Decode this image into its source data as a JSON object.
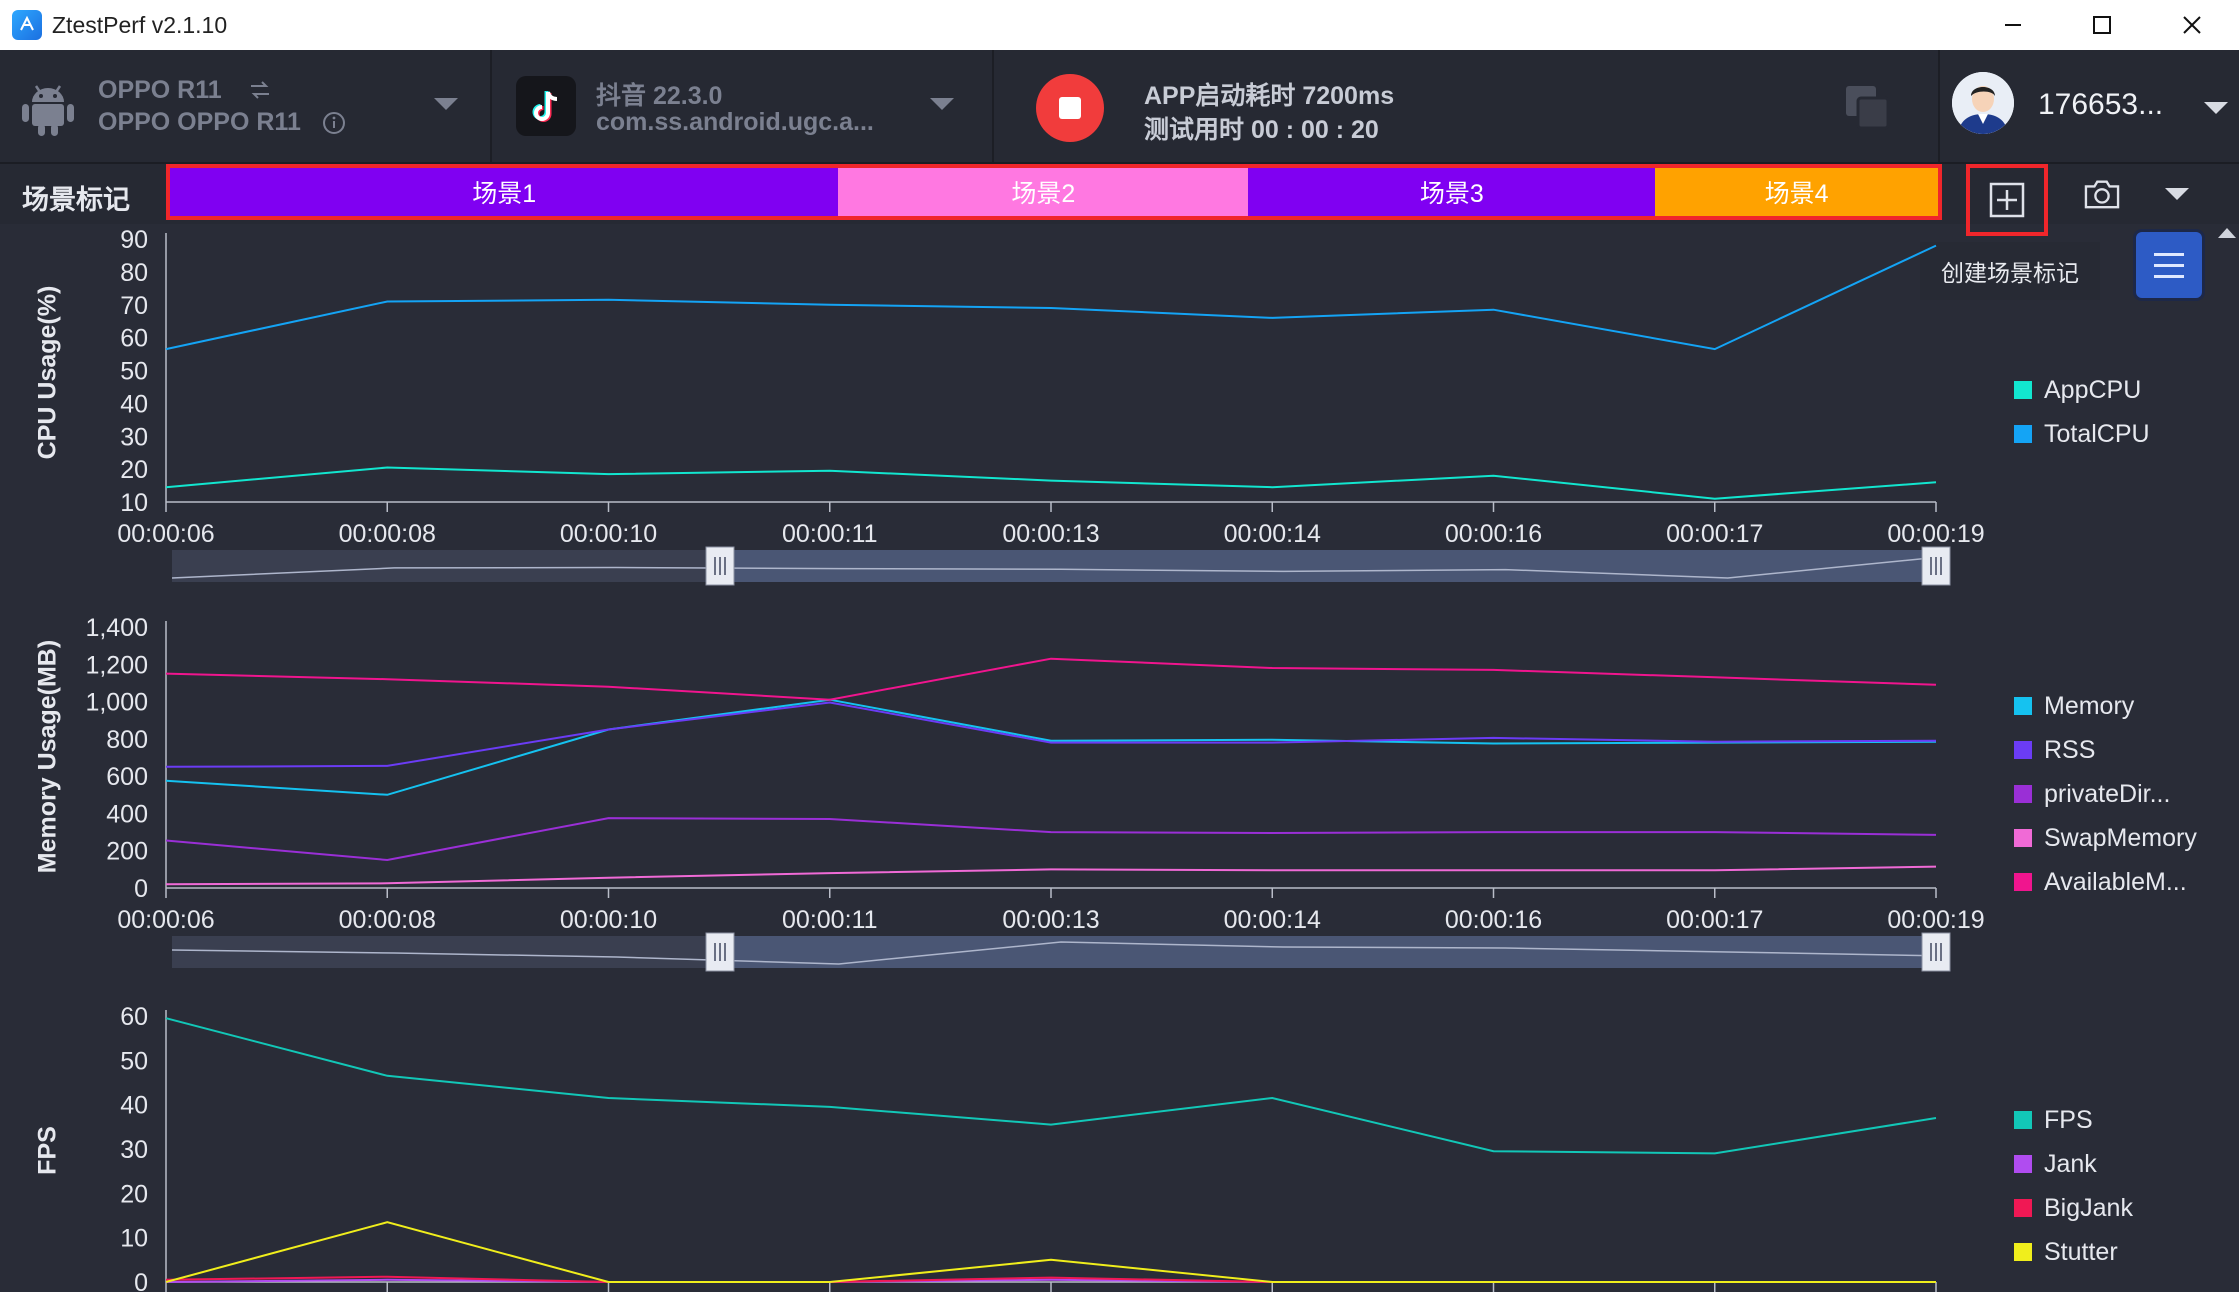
{
  "window": {
    "title": "ZtestPerf v2.1.10"
  },
  "device": {
    "line1": "OPPO R11",
    "line2": "OPPO OPPO R11"
  },
  "app": {
    "line1": "抖音 22.3.0",
    "line2": "com.ss.android.ugc.a..."
  },
  "status": {
    "launch_time": "APP启动耗时 7200ms",
    "test_time": "测试用时 00 : 00 : 20"
  },
  "user": {
    "name": "176653..."
  },
  "scenes": {
    "label": "场景标记",
    "items": [
      {
        "name": "场景1",
        "color": "#8000f2",
        "start": 0,
        "end": 3.78
      },
      {
        "name": "场景2",
        "color": "#ff78e1",
        "start": 3.78,
        "end": 6.1
      },
      {
        "name": "场景3",
        "color": "#8000f2",
        "start": 6.1,
        "end": 8.4
      },
      {
        "name": "场景4",
        "color": "#ffa200",
        "start": 8.4,
        "end": 10
      }
    ],
    "tooltip": "创建场景标记"
  },
  "time_labels": [
    "00:00:06",
    "00:00:08",
    "00:00:10",
    "00:00:11",
    "00:00:13",
    "00:00:14",
    "00:00:16",
    "00:00:17",
    "00:00:19"
  ],
  "chart_data": [
    {
      "type": "line",
      "id": "cpu",
      "ylabel": "CPU Usage(%)",
      "yticks": [
        10,
        20,
        30,
        40,
        50,
        60,
        70,
        80,
        90
      ],
      "ylim": [
        10,
        90
      ],
      "x": [
        "00:00:06",
        "00:00:08",
        "00:00:10",
        "00:00:11",
        "00:00:13",
        "00:00:14",
        "00:00:16",
        "00:00:17",
        "00:00:19"
      ],
      "series": [
        {
          "name": "AppCPU",
          "color": "#12e6cf",
          "values": [
            14.5,
            20.5,
            18.5,
            19.5,
            16.5,
            14.5,
            18,
            11,
            16
          ]
        },
        {
          "name": "TotalCPU",
          "color": "#14a4f5",
          "values": [
            56.5,
            71,
            71.5,
            70,
            69,
            66,
            68.5,
            56.5,
            88
          ]
        }
      ],
      "legend": "right"
    },
    {
      "type": "line",
      "id": "memory",
      "ylabel": "Memory Usage(MB)",
      "yticks": [
        0,
        200,
        400,
        600,
        800,
        1000,
        1200,
        1400
      ],
      "yticklabels": [
        "0",
        "200",
        "400",
        "600",
        "800",
        "1,000",
        "1,200",
        "1,400"
      ],
      "ylim": [
        0,
        1400
      ],
      "x": [
        "00:00:06",
        "00:00:08",
        "00:00:10",
        "00:00:11",
        "00:00:13",
        "00:00:14",
        "00:00:16",
        "00:00:17",
        "00:00:19"
      ],
      "series": [
        {
          "name": "Memory",
          "color": "#15c2f0",
          "values": [
            575,
            500,
            850,
            1010,
            790,
            795,
            775,
            780,
            785
          ]
        },
        {
          "name": "RSS",
          "color": "#6b3cf5",
          "values": [
            650,
            655,
            850,
            995,
            780,
            780,
            805,
            785,
            790
          ]
        },
        {
          "name": "privateDir...",
          "color": "#9a2fd6",
          "values": [
            255,
            150,
            375,
            370,
            300,
            295,
            300,
            300,
            285
          ]
        },
        {
          "name": "SwapMemory",
          "color": "#f06ad6",
          "values": [
            20,
            25,
            55,
            80,
            100,
            95,
            95,
            95,
            115
          ]
        },
        {
          "name": "AvailableM...",
          "color": "#f0158e",
          "values": [
            1150,
            1120,
            1080,
            1010,
            1230,
            1180,
            1170,
            1130,
            1090
          ]
        }
      ],
      "legend": "right"
    },
    {
      "type": "line",
      "id": "fps",
      "ylabel": "FPS",
      "yticks": [
        0,
        10,
        20,
        30,
        40,
        50,
        60
      ],
      "ylim": [
        0,
        60
      ],
      "x": [
        "00:00:06",
        "00:00:08",
        "00:00:10",
        "00:00:11",
        "00:00:13",
        "00:00:14",
        "00:00:16",
        "00:00:17",
        "00:00:19"
      ],
      "series": [
        {
          "name": "FPS",
          "color": "#12c7b7",
          "values": [
            59.5,
            46.5,
            41.5,
            39.5,
            35.5,
            41.5,
            29.5,
            29,
            37
          ]
        },
        {
          "name": "Jank",
          "color": "#b04cf0",
          "values": [
            0,
            0.5,
            0,
            0,
            0.5,
            0,
            0,
            0,
            0
          ]
        },
        {
          "name": "BigJank",
          "color": "#f01854",
          "values": [
            0.5,
            1.2,
            0,
            0,
            1,
            0,
            0,
            0,
            0
          ]
        },
        {
          "name": "Stutter",
          "color": "#f0ee1c",
          "values": [
            0,
            13.5,
            0,
            0,
            5,
            0,
            0,
            0,
            0
          ]
        }
      ],
      "legend": "right"
    }
  ]
}
